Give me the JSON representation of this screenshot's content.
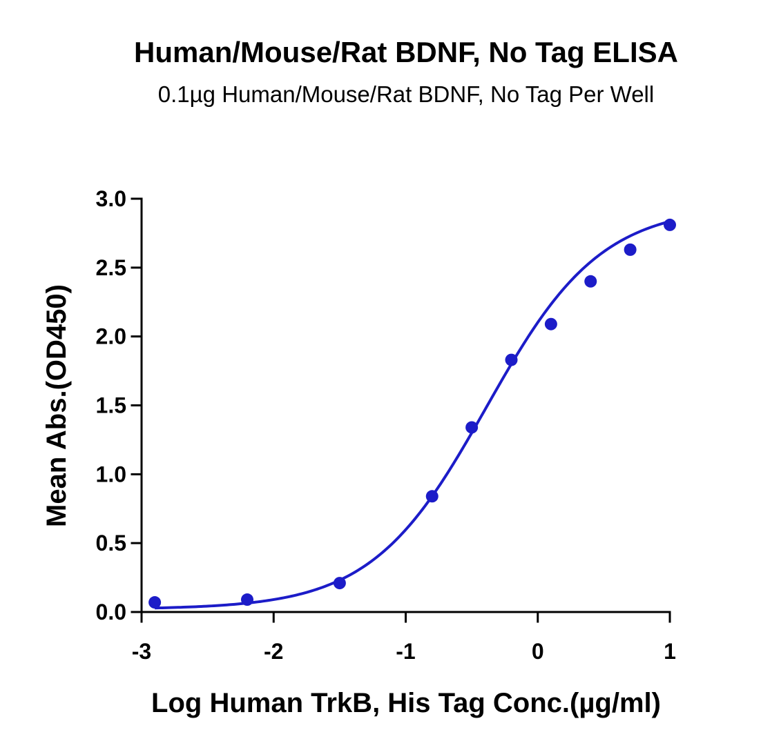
{
  "chart_data": {
    "type": "scatter",
    "title": "Human/Mouse/Rat BDNF, No Tag ELISA",
    "subtitle": "0.1µg Human/Mouse/Rat BDNF, No Tag Per Well",
    "xlabel": "Log Human TrkB, His Tag Conc.(µg/ml)",
    "ylabel": "Mean Abs.(OD450)",
    "xlim": [
      -3,
      1
    ],
    "ylim": [
      0,
      3
    ],
    "x_ticks": [
      -3,
      -2,
      -1,
      0,
      1
    ],
    "x_tick_labels": [
      "-3",
      "-2",
      "-1",
      "0",
      "1"
    ],
    "y_ticks": [
      0,
      0.5,
      1,
      1.5,
      2,
      2.5,
      3
    ],
    "y_tick_labels": [
      "0.0",
      "0.5",
      "1.0",
      "1.5",
      "2.0",
      "2.5",
      "3.0"
    ],
    "series": [
      {
        "x": [
          -2.9,
          -2.2,
          -1.5,
          -0.8,
          -0.5,
          -0.2,
          0.1,
          0.4,
          0.7,
          1.0
        ],
        "y": [
          0.07,
          0.09,
          0.21,
          0.84,
          1.34,
          1.83,
          2.09,
          2.4,
          2.63,
          2.81
        ]
      }
    ],
    "fit_curve": {
      "bottom": 0.02,
      "top": 2.95,
      "log_ec50": -0.39,
      "hill_slope": 1.0
    },
    "color": "#1c1cc8",
    "grid": false,
    "legend": "none"
  }
}
